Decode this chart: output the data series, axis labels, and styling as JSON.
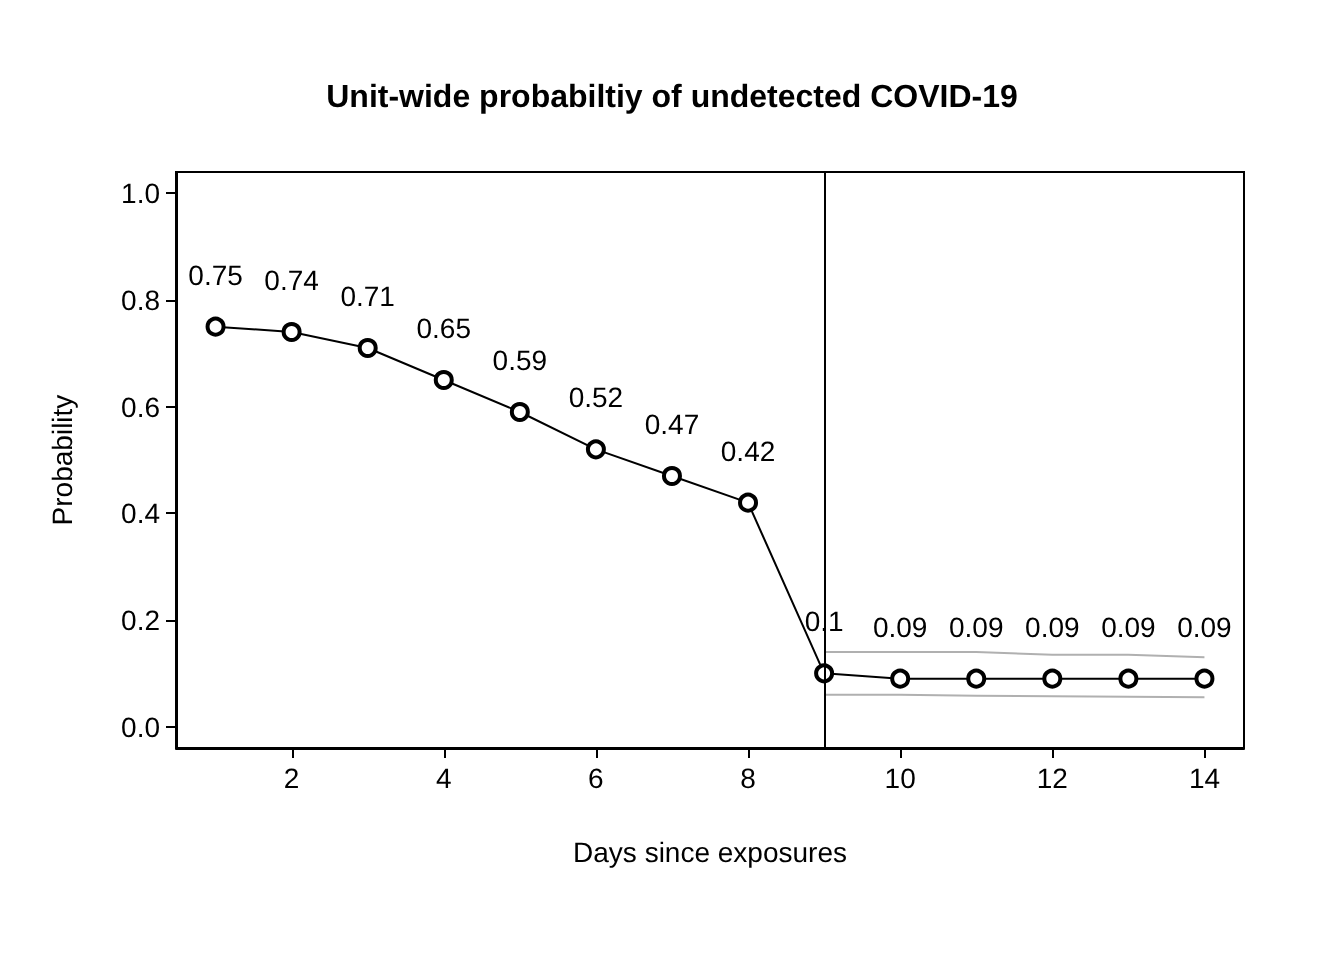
{
  "chart_data": {
    "type": "line",
    "title": "Unit-wide probabiltiy of undetected COVID-19",
    "xlabel": "Days since exposures",
    "ylabel": "Probability",
    "x": [
      1,
      2,
      3,
      4,
      5,
      6,
      7,
      8,
      9,
      10,
      11,
      12,
      13,
      14
    ],
    "series": [
      {
        "color": "#000000",
        "marker": "circle",
        "values": [
          0.75,
          0.74,
          0.71,
          0.65,
          0.59,
          0.52,
          0.47,
          0.42,
          0.1,
          0.09,
          0.09,
          0.09,
          0.09,
          0.09
        ],
        "value_labels": [
          "0.75",
          "0.74",
          "0.71",
          "0.65",
          "0.59",
          "0.52",
          "0.47",
          "0.42",
          "0.1",
          "0.09",
          "0.09",
          "0.09",
          "0.09",
          "0.09"
        ]
      },
      {
        "color": "#b0b0b0",
        "marker": "none",
        "values": [
          null,
          null,
          null,
          null,
          null,
          null,
          null,
          null,
          0.14,
          0.14,
          0.14,
          0.135,
          0.135,
          0.13
        ]
      },
      {
        "color": "#b0b0b0",
        "marker": "none",
        "values": [
          null,
          null,
          null,
          null,
          null,
          null,
          null,
          null,
          0.06,
          0.06,
          0.058,
          0.057,
          0.056,
          0.055
        ]
      }
    ],
    "line_style": "solid",
    "grid": false,
    "xlim": [
      0.48,
      14.52
    ],
    "xticks": [
      2,
      4,
      6,
      8,
      10,
      12,
      14
    ],
    "ylim": [
      -0.04,
      1.04
    ],
    "yticks": [
      {
        "value": 0,
        "label": "0.0"
      },
      0.2,
      0.4,
      0.6,
      0.8,
      {
        "value": 1,
        "label": "1.0"
      }
    ],
    "ref_lines": [
      {
        "axis": "x",
        "value": 9,
        "color": "#000000"
      }
    ]
  }
}
